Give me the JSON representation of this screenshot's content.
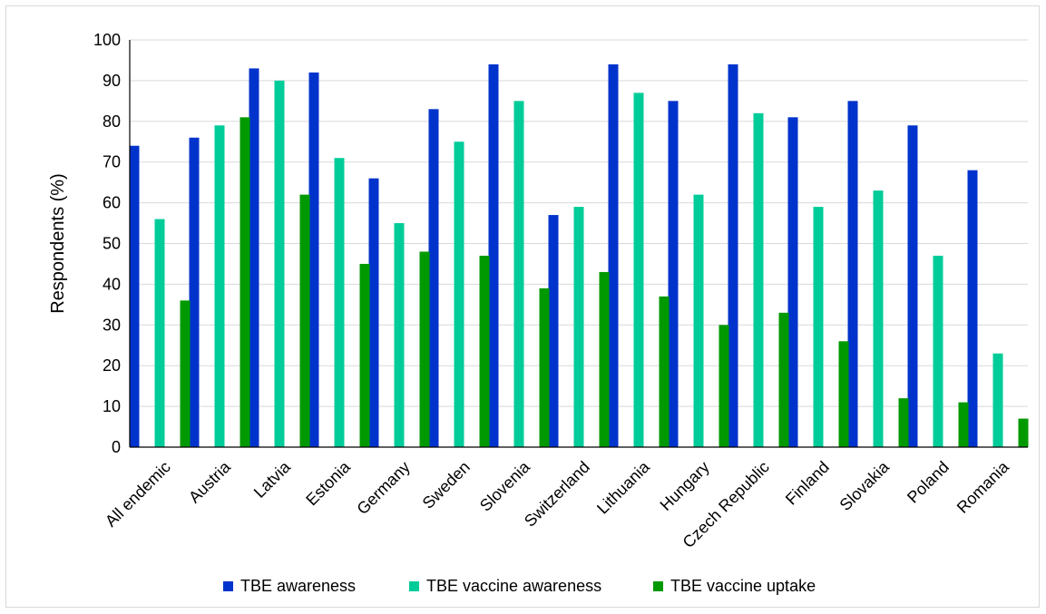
{
  "chart_data": {
    "type": "bar",
    "title": "",
    "xlabel": "",
    "ylabel": "Respondents (%)",
    "ylim": [
      0,
      100
    ],
    "yticks": [
      0,
      10,
      20,
      30,
      40,
      50,
      60,
      70,
      80,
      90,
      100
    ],
    "grid": true,
    "legend_position": "bottom",
    "categories": [
      "All endemic",
      "Austria",
      "Latvia",
      "Estonia",
      "Germany",
      "Sweden",
      "Slovenia",
      "Switzerland",
      "Lithuania",
      "Hungary",
      "Czech Republic",
      "Finland",
      "Slovakia",
      "Poland",
      "Romania"
    ],
    "series": [
      {
        "name": "TBE awareness",
        "color": "#0033cc",
        "values": [
          74,
          76,
          93,
          92,
          66,
          83,
          94,
          57,
          94,
          85,
          94,
          81,
          85,
          79,
          68
        ]
      },
      {
        "name": "TBE vaccine awareness",
        "color": "#00cc99",
        "values": [
          56,
          79,
          90,
          71,
          55,
          75,
          85,
          59,
          87,
          62,
          82,
          59,
          63,
          47,
          23
        ]
      },
      {
        "name": "TBE vaccine uptake",
        "color": "#009900",
        "values": [
          36,
          81,
          62,
          45,
          48,
          47,
          39,
          43,
          37,
          30,
          33,
          26,
          12,
          11,
          7
        ]
      }
    ]
  }
}
